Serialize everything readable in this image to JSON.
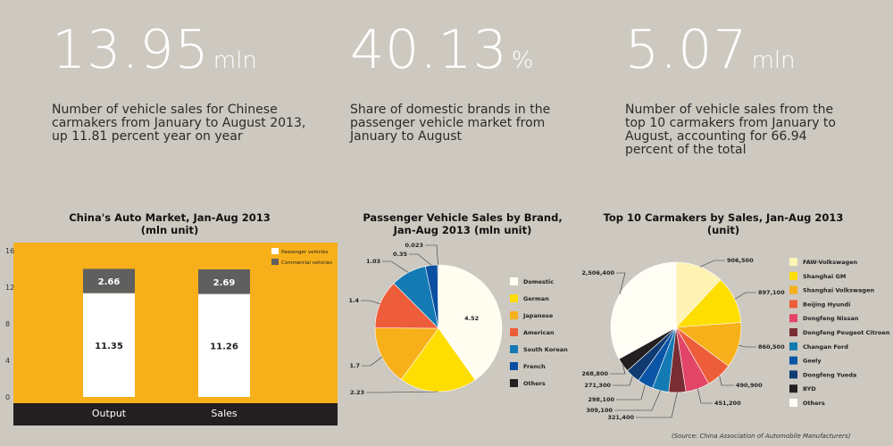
{
  "stats": [
    {
      "number": "13.95",
      "unit": "mln",
      "desc": "Number of vehicle sales for Chinese carmakers from January to August 2013, up 11.81 percent year on year"
    },
    {
      "number": "40.13",
      "unit": "%",
      "desc": "Share of domestic brands in the passenger vehicle market from January to August"
    },
    {
      "number": "5.07",
      "unit": "mln",
      "desc": "Number of vehicle sales  from the top 10 carmakers from January to August, accounting for 66.94 percent of the total"
    }
  ],
  "chart_data": [
    {
      "type": "bar",
      "title": "China's Auto Market, Jan-Aug 2013",
      "subtitle": "(mln unit)",
      "categories": [
        "Output",
        "Sales"
      ],
      "series": [
        {
          "name": "Passenger vehicles",
          "values": [
            11.35,
            11.26
          ],
          "color": "#ffffff"
        },
        {
          "name": "Commercial vehicles",
          "values": [
            2.66,
            2.69
          ],
          "color": "#5f5f5f"
        }
      ],
      "stacked": true,
      "ylim": [
        0,
        16
      ],
      "yticks": [
        "0",
        "4",
        "8",
        "12",
        "16"
      ],
      "legend": "top-right",
      "background": "#f7b01a",
      "axis_band": "#231f20"
    },
    {
      "type": "pie",
      "title": "Passenger Vehicle Sales by Brand,",
      "subtitle": "Jan-Aug 2013 (mln unit)",
      "labels": [
        "Domestic",
        "German",
        "Japanese",
        "American",
        "South Korean",
        "French",
        "Others"
      ],
      "values": [
        4.52,
        2.23,
        1.7,
        1.4,
        1.03,
        0.35,
        0.023
      ],
      "value_labels": [
        "4.52",
        "2.23",
        "1.7",
        "1.4",
        "1.03",
        "0.35",
        "0.023"
      ],
      "colors": [
        "#fffdf0",
        "#fedd00",
        "#f7b01a",
        "#ee5d3a",
        "#137ab4",
        "#0a4fa1",
        "#231f20"
      ],
      "legend": "right"
    },
    {
      "type": "pie",
      "title": "Top 10 Carmakers by Sales, Jan-Aug 2013",
      "subtitle": "(unit)",
      "labels": [
        "FAW-Volkswagen",
        "Shanghai GM",
        "Shanghai Volkswagen",
        "Beijing Hyundi",
        "Dongfeng Nissan",
        "Dongfeng Peugeot Citroen",
        "Changan Ford",
        "Geely",
        "Dongfeng Yueda",
        "BYD",
        "Others"
      ],
      "values": [
        906500,
        897100,
        860500,
        490900,
        451200,
        321400,
        309100,
        298100,
        271300,
        268800,
        2506400
      ],
      "value_labels": [
        "906,500",
        "897,100",
        "860,500",
        "490,900",
        "451,200",
        "321,400",
        "309,100",
        "298,100",
        "271,300",
        "268,800",
        "2,506,400"
      ],
      "colors": [
        "#fff3b3",
        "#fedd00",
        "#f7b01a",
        "#ee5d3a",
        "#e24567",
        "#7a2d33",
        "#137ab4",
        "#0a55a6",
        "#103a72",
        "#231f20",
        "#fffdf4"
      ],
      "legend": "right"
    }
  ],
  "source": "(Source: China Association of Automobile Manufacturers)"
}
